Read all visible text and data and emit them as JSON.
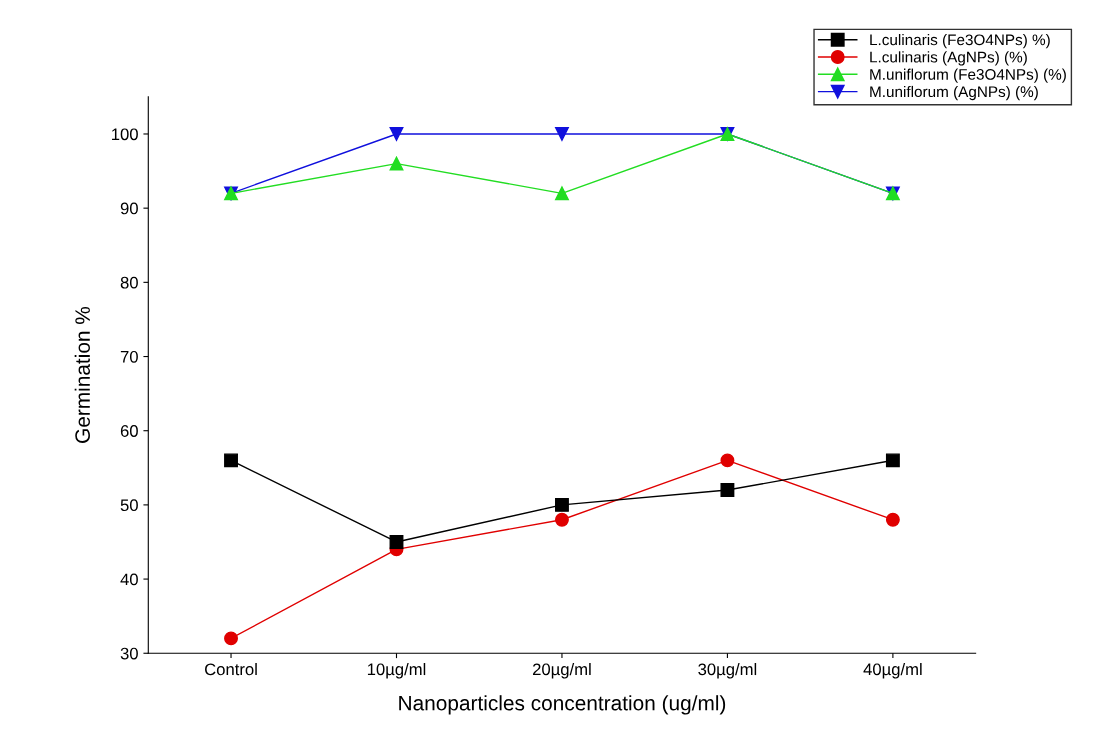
{
  "chart_data": {
    "type": "line",
    "xlabel": "Nanoparticles concentration (ug/ml)",
    "ylabel": "Germination %",
    "categories": [
      "Control",
      "10µg/ml",
      "20µg/ml",
      "30µg/ml",
      "40µg/ml"
    ],
    "series": [
      {
        "name": "L.culinaris (Fe3O4NPs) %)",
        "color": "#000000",
        "marker": "square",
        "values": [
          56,
          45,
          50,
          52,
          56
        ]
      },
      {
        "name": "L.culinaris (AgNPs) (%)",
        "color": "#e00000",
        "marker": "circle",
        "values": [
          32,
          44,
          48,
          56,
          48
        ]
      },
      {
        "name": "M.uniflorum (Fe3O4NPs) (%)",
        "color": "#22dd22",
        "marker": "triangle",
        "values": [
          92,
          96,
          92,
          100,
          92
        ]
      },
      {
        "name": "M.uniflorum (AgNPs) (%)",
        "color": "#1010dd",
        "marker": "triangle_down",
        "values": [
          92,
          100,
          100,
          100,
          92
        ]
      }
    ],
    "ylim": [
      30,
      105
    ],
    "yticks": [
      30,
      40,
      50,
      60,
      70,
      80,
      90,
      100
    ],
    "grid": false,
    "legend": "top right",
    "line_style": "solid"
  }
}
